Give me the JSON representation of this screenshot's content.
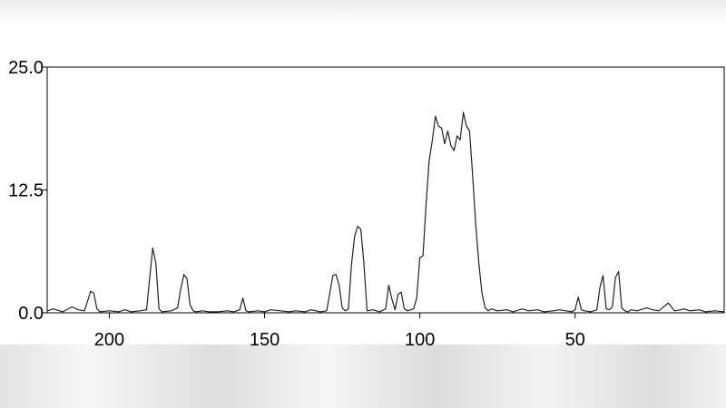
{
  "chart_data": {
    "type": "line",
    "title": "",
    "xlabel": "",
    "ylabel": "",
    "x_reversed": true,
    "xlim": [
      220,
      2
    ],
    "ylim": [
      0,
      25
    ],
    "grid": false,
    "y_ticks": [
      "0.0",
      "12.5",
      "25.0"
    ],
    "x_ticks": [
      "200",
      "150",
      "100",
      "50"
    ],
    "series": [
      {
        "x": [
          220,
          218,
          215,
          212,
          210,
          208,
          207,
          206,
          205,
          204,
          203,
          200,
          197,
          195,
          193,
          190,
          188,
          187,
          186,
          185,
          184,
          183,
          180,
          178,
          177,
          176,
          175,
          174,
          173,
          172,
          170,
          168,
          165,
          162,
          160,
          158,
          157,
          156,
          155,
          152,
          150,
          148,
          145,
          142,
          140,
          137,
          135,
          132,
          130,
          129,
          128,
          127,
          126,
          125,
          124,
          123,
          122,
          121,
          120,
          119,
          118,
          117,
          115,
          113,
          111,
          110,
          109,
          108,
          107,
          106,
          105,
          104,
          103,
          102,
          101,
          100,
          99,
          98,
          97,
          96,
          95,
          94,
          93,
          92,
          91,
          90,
          89,
          88,
          87,
          86,
          85,
          84,
          83,
          82,
          81,
          80,
          79,
          78,
          77,
          75,
          72,
          70,
          67,
          65,
          62,
          60,
          57,
          55,
          53,
          51,
          50,
          49,
          48,
          47,
          45,
          43,
          42,
          41,
          40,
          39,
          38,
          37,
          36,
          35,
          34,
          33,
          32,
          30,
          27,
          25,
          23,
          20,
          18,
          16,
          15,
          13,
          10,
          8,
          5,
          2
        ],
        "y": [
          0.2,
          0.4,
          0.1,
          0.6,
          0.3,
          0.2,
          1.2,
          2.2,
          2.0,
          0.4,
          0.1,
          0.2,
          0.1,
          0.3,
          0.1,
          0.2,
          0.3,
          3.5,
          6.6,
          5.0,
          0.4,
          0.1,
          0.2,
          0.5,
          2.4,
          3.9,
          3.5,
          0.8,
          0.2,
          0.1,
          0.2,
          0.1,
          0.1,
          0.2,
          0.1,
          0.3,
          1.5,
          0.2,
          0.1,
          0.2,
          0.1,
          0.3,
          0.2,
          0.1,
          0.2,
          0.1,
          0.3,
          0.1,
          0.2,
          2.0,
          3.8,
          3.9,
          2.8,
          0.5,
          0.2,
          0.4,
          5.0,
          7.8,
          8.8,
          8.5,
          5.0,
          0.2,
          0.3,
          0.1,
          0.4,
          2.8,
          1.4,
          0.3,
          1.9,
          2.1,
          0.4,
          0.2,
          0.3,
          0.4,
          1.5,
          5.6,
          5.8,
          11.0,
          15.5,
          17.5,
          20.0,
          19.0,
          18.8,
          17.2,
          18.5,
          17.0,
          16.5,
          18.0,
          17.6,
          20.4,
          19.0,
          18.5,
          14.0,
          9.0,
          5.0,
          2.0,
          0.5,
          0.2,
          0.4,
          0.2,
          0.3,
          0.1,
          0.4,
          0.2,
          0.3,
          0.1,
          0.2,
          0.3,
          0.2,
          0.1,
          0.3,
          1.6,
          0.3,
          0.2,
          0.1,
          0.3,
          2.6,
          3.8,
          0.4,
          0.3,
          0.6,
          3.6,
          4.2,
          0.5,
          0.2,
          0.1,
          0.3,
          0.2,
          0.5,
          0.3,
          0.2,
          1.0,
          0.2,
          0.3,
          0.4,
          0.2,
          0.3,
          0.1,
          0.2,
          0.1
        ]
      }
    ]
  }
}
